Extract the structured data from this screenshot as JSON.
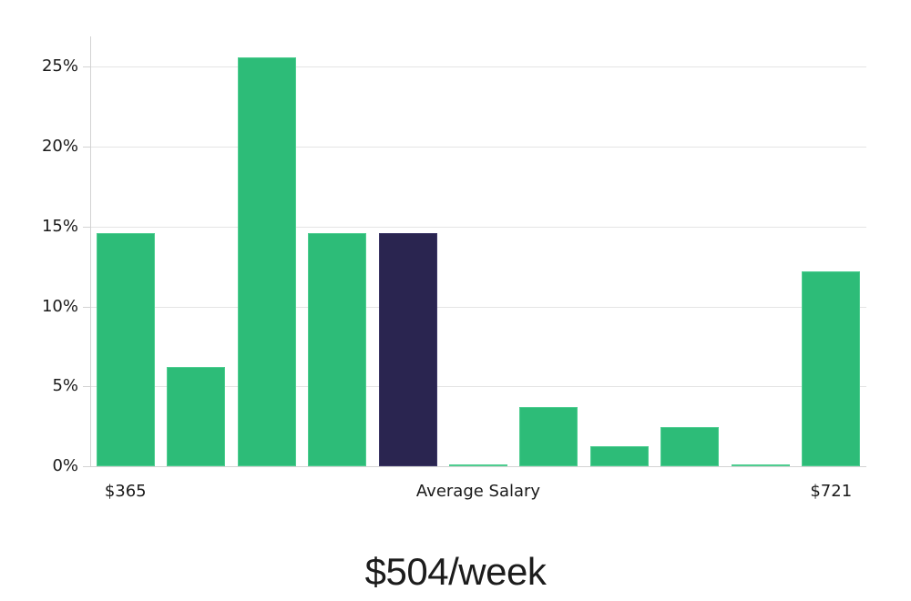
{
  "chart_data": {
    "type": "bar",
    "title": "$504/week",
    "description": "Weekly salary distribution histogram with highlighted average salary bar",
    "values": [
      14.6,
      6.2,
      25.6,
      14.6,
      14.6,
      0.1,
      3.7,
      1.25,
      2.45,
      0.1,
      12.2
    ],
    "highlight_index": 4,
    "y_ticks": [
      {
        "value": 0,
        "label": "0%"
      },
      {
        "value": 5,
        "label": "5%"
      },
      {
        "value": 10,
        "label": "10%"
      },
      {
        "value": 15,
        "label": "15%"
      },
      {
        "value": 20,
        "label": "20%"
      },
      {
        "value": 25,
        "label": "25%"
      }
    ],
    "x_tick_labels": [
      {
        "bar_index": 0,
        "label": "$365"
      },
      {
        "bar_index": 5,
        "label": "Average Salary"
      },
      {
        "bar_index": 10,
        "label": "$721"
      }
    ],
    "ylim": [
      0,
      26.9
    ],
    "grid": true,
    "legend": "none",
    "colors": {
      "bar_fill": "#2dbc78",
      "bar_edge": "#4ecd90",
      "highlight_fill": "#2a2550",
      "highlight_edge": "#3b3566",
      "gridline": "#e4e4e4",
      "axis": "#d3d3d3",
      "tick_text": "#1a1a1a",
      "title_text": "#1c1c1c",
      "background": "#ffffff"
    }
  }
}
